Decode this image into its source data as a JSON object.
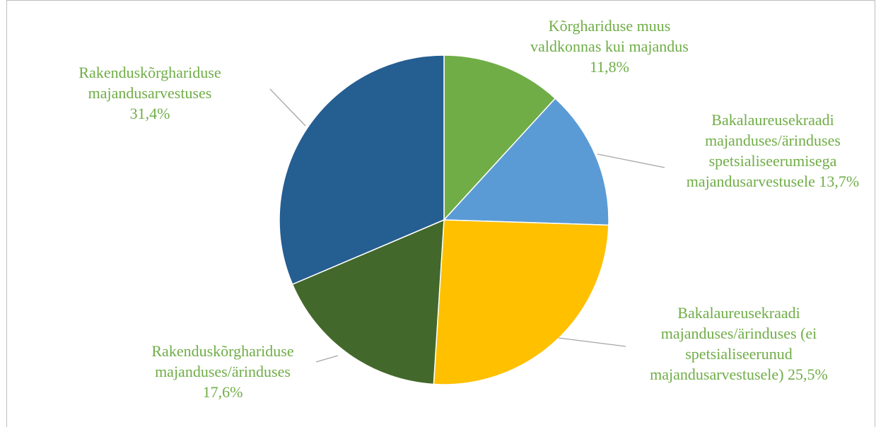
{
  "chart_data": {
    "type": "pie",
    "categories": [
      "Kõrghariduse muus valdkonnas kui majandus",
      "Bakalaureusekraadi majanduses/ärinduses spetsialiseerumisega majandusarvestusele",
      "Bakalaureusekraadi majanduses/ärinduses (ei spetsialiseerunud majandusarvestusele)",
      "Rakenduskõrghariduse majanduses/ärinduses",
      "Rakenduskõrghariduse majandusarvestuses"
    ],
    "values": [
      11.8,
      13.7,
      25.5,
      17.6,
      31.4
    ],
    "value_labels": [
      "11,8%",
      "13,7%",
      "25,5%",
      "17,6%",
      "31,4%"
    ],
    "colors": [
      "#70ad47",
      "#5b9bd5",
      "#ffc000",
      "#43682b",
      "#255e91"
    ]
  }
}
